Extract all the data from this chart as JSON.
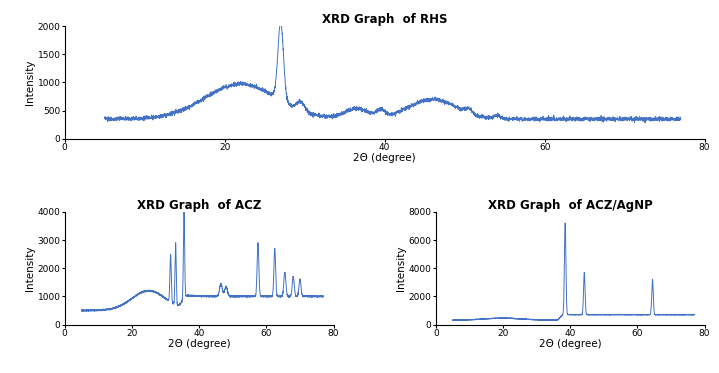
{
  "title_rhs": "XRD Graph  of RHS",
  "title_acz": "XRD Graph  of ACZ",
  "title_aczagnp": "XRD Graph  of ACZ/AgNP",
  "xlabel": "2Θ (degree)",
  "ylabel": "Intensity",
  "line_color": "#4472C4",
  "line_width": 0.7,
  "rhs_xlim": [
    0,
    80
  ],
  "rhs_ylim": [
    0,
    2000
  ],
  "rhs_yticks": [
    0,
    500,
    1000,
    1500,
    2000
  ],
  "acz_xlim": [
    0,
    80
  ],
  "acz_ylim": [
    0,
    4000
  ],
  "acz_yticks": [
    0,
    1000,
    2000,
    3000,
    4000
  ],
  "agnp_xlim": [
    0,
    80
  ],
  "agnp_ylim": [
    0,
    8000
  ],
  "agnp_yticks": [
    0,
    2000,
    4000,
    6000,
    8000
  ],
  "xticks": [
    0,
    20,
    40,
    60,
    80
  ]
}
